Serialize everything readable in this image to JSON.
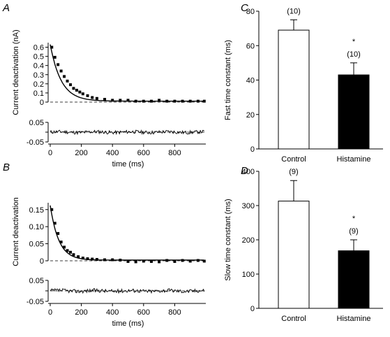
{
  "figure": {
    "panels": {
      "A": {
        "letter": "A"
      },
      "B": {
        "letter": "B"
      },
      "C": {
        "letter": "C"
      },
      "D": {
        "letter": "D"
      }
    }
  },
  "chart_data": [
    {
      "panel": "A",
      "type": "scatter",
      "ylabel": "Current deactivation (nA)",
      "xlabel": "time (ms)",
      "xlim": [
        0,
        1000
      ],
      "ylim": [
        0,
        0.65
      ],
      "xticks": [
        0,
        200,
        400,
        600,
        800
      ],
      "yticks": [
        0,
        0.1,
        0.2,
        0.3,
        0.4,
        0.5,
        0.6
      ],
      "ytick_labels": [
        "0",
        "0.1",
        "0.2",
        "0.3",
        "0.4",
        "0.5",
        "0.6"
      ],
      "zero_line": "dashed",
      "fit": {
        "amplitude": 0.62,
        "tau_ms": 70,
        "offset": 0.01
      },
      "series": [
        {
          "x": [
            10,
            30,
            50,
            70,
            90,
            110,
            130,
            150,
            170,
            190,
            210,
            240,
            270,
            300,
            350,
            400,
            450,
            500,
            550,
            600,
            650,
            700,
            750,
            800,
            850,
            900,
            950,
            990
          ],
          "values": [
            0.6,
            0.49,
            0.41,
            0.34,
            0.28,
            0.23,
            0.19,
            0.15,
            0.13,
            0.11,
            0.09,
            0.07,
            0.05,
            0.04,
            0.03,
            0.02,
            0.02,
            0.02,
            0.01,
            0.01,
            0.01,
            0.02,
            0.01,
            0.01,
            0.01,
            0.01,
            0.01,
            0.01
          ]
        }
      ],
      "residual": {
        "ylim": [
          -0.05,
          0.05
        ],
        "yticks": [
          -0.05,
          0,
          0.05
        ],
        "ytick_labels": [
          "-0.05",
          "",
          "0.05"
        ],
        "zero_line": "dashed"
      }
    },
    {
      "panel": "B",
      "type": "scatter",
      "ylabel": "Current deactivation",
      "xlabel": "time (ms)",
      "xlim": [
        0,
        1000
      ],
      "ylim": [
        0,
        0.17
      ],
      "xticks": [
        0,
        200,
        400,
        600,
        800
      ],
      "yticks": [
        0,
        0.05,
        0.1,
        0.15
      ],
      "ytick_labels": [
        "0",
        "0.05",
        "0.10",
        "0.15"
      ],
      "zero_line": "dashed",
      "fit": {
        "amplitude": 0.16,
        "tau_ms": 55,
        "offset": 0.002
      },
      "series": [
        {
          "x": [
            10,
            30,
            50,
            70,
            90,
            110,
            130,
            150,
            180,
            210,
            240,
            270,
            300,
            350,
            400,
            450,
            500,
            550,
            600,
            650,
            700,
            750,
            800,
            850,
            900,
            950,
            990
          ],
          "values": [
            0.15,
            0.11,
            0.08,
            0.055,
            0.04,
            0.03,
            0.025,
            0.018,
            0.012,
            0.008,
            0.006,
            0.005,
            0.004,
            0.003,
            0.003,
            0.002,
            -0.002,
            -0.003,
            -0.001,
            -0.002,
            -0.003,
            0.001,
            -0.002,
            0.001,
            -0.001,
            0.001,
            -0.001
          ]
        }
      ],
      "residual": {
        "ylim": [
          -0.05,
          0.05
        ],
        "yticks": [
          -0.05,
          0,
          0.05
        ],
        "ytick_labels": [
          "-0.05",
          "",
          "0.05"
        ],
        "zero_line": "dashed"
      }
    },
    {
      "panel": "C",
      "type": "bar",
      "ylabel": "Fast time constant (ms)",
      "categories": [
        "Control",
        "Histamine"
      ],
      "values": [
        69,
        43
      ],
      "errors": [
        6,
        7
      ],
      "n_labels": [
        "(10)",
        "(10)"
      ],
      "significance": [
        "",
        "*"
      ],
      "fills": [
        "#ffffff",
        "#000000"
      ],
      "ylim": [
        0,
        80
      ],
      "yticks": [
        0,
        20,
        40,
        60,
        80
      ]
    },
    {
      "panel": "D",
      "type": "bar",
      "ylabel": "Slow time constant (ms)",
      "categories": [
        "Control",
        "Histamine"
      ],
      "values": [
        313,
        168
      ],
      "errors": [
        60,
        32
      ],
      "n_labels": [
        "(9)",
        "(9)"
      ],
      "significance": [
        "",
        "*"
      ],
      "fills": [
        "#ffffff",
        "#000000"
      ],
      "ylim": [
        0,
        400
      ],
      "yticks": [
        0,
        100,
        200,
        300,
        400
      ]
    }
  ]
}
